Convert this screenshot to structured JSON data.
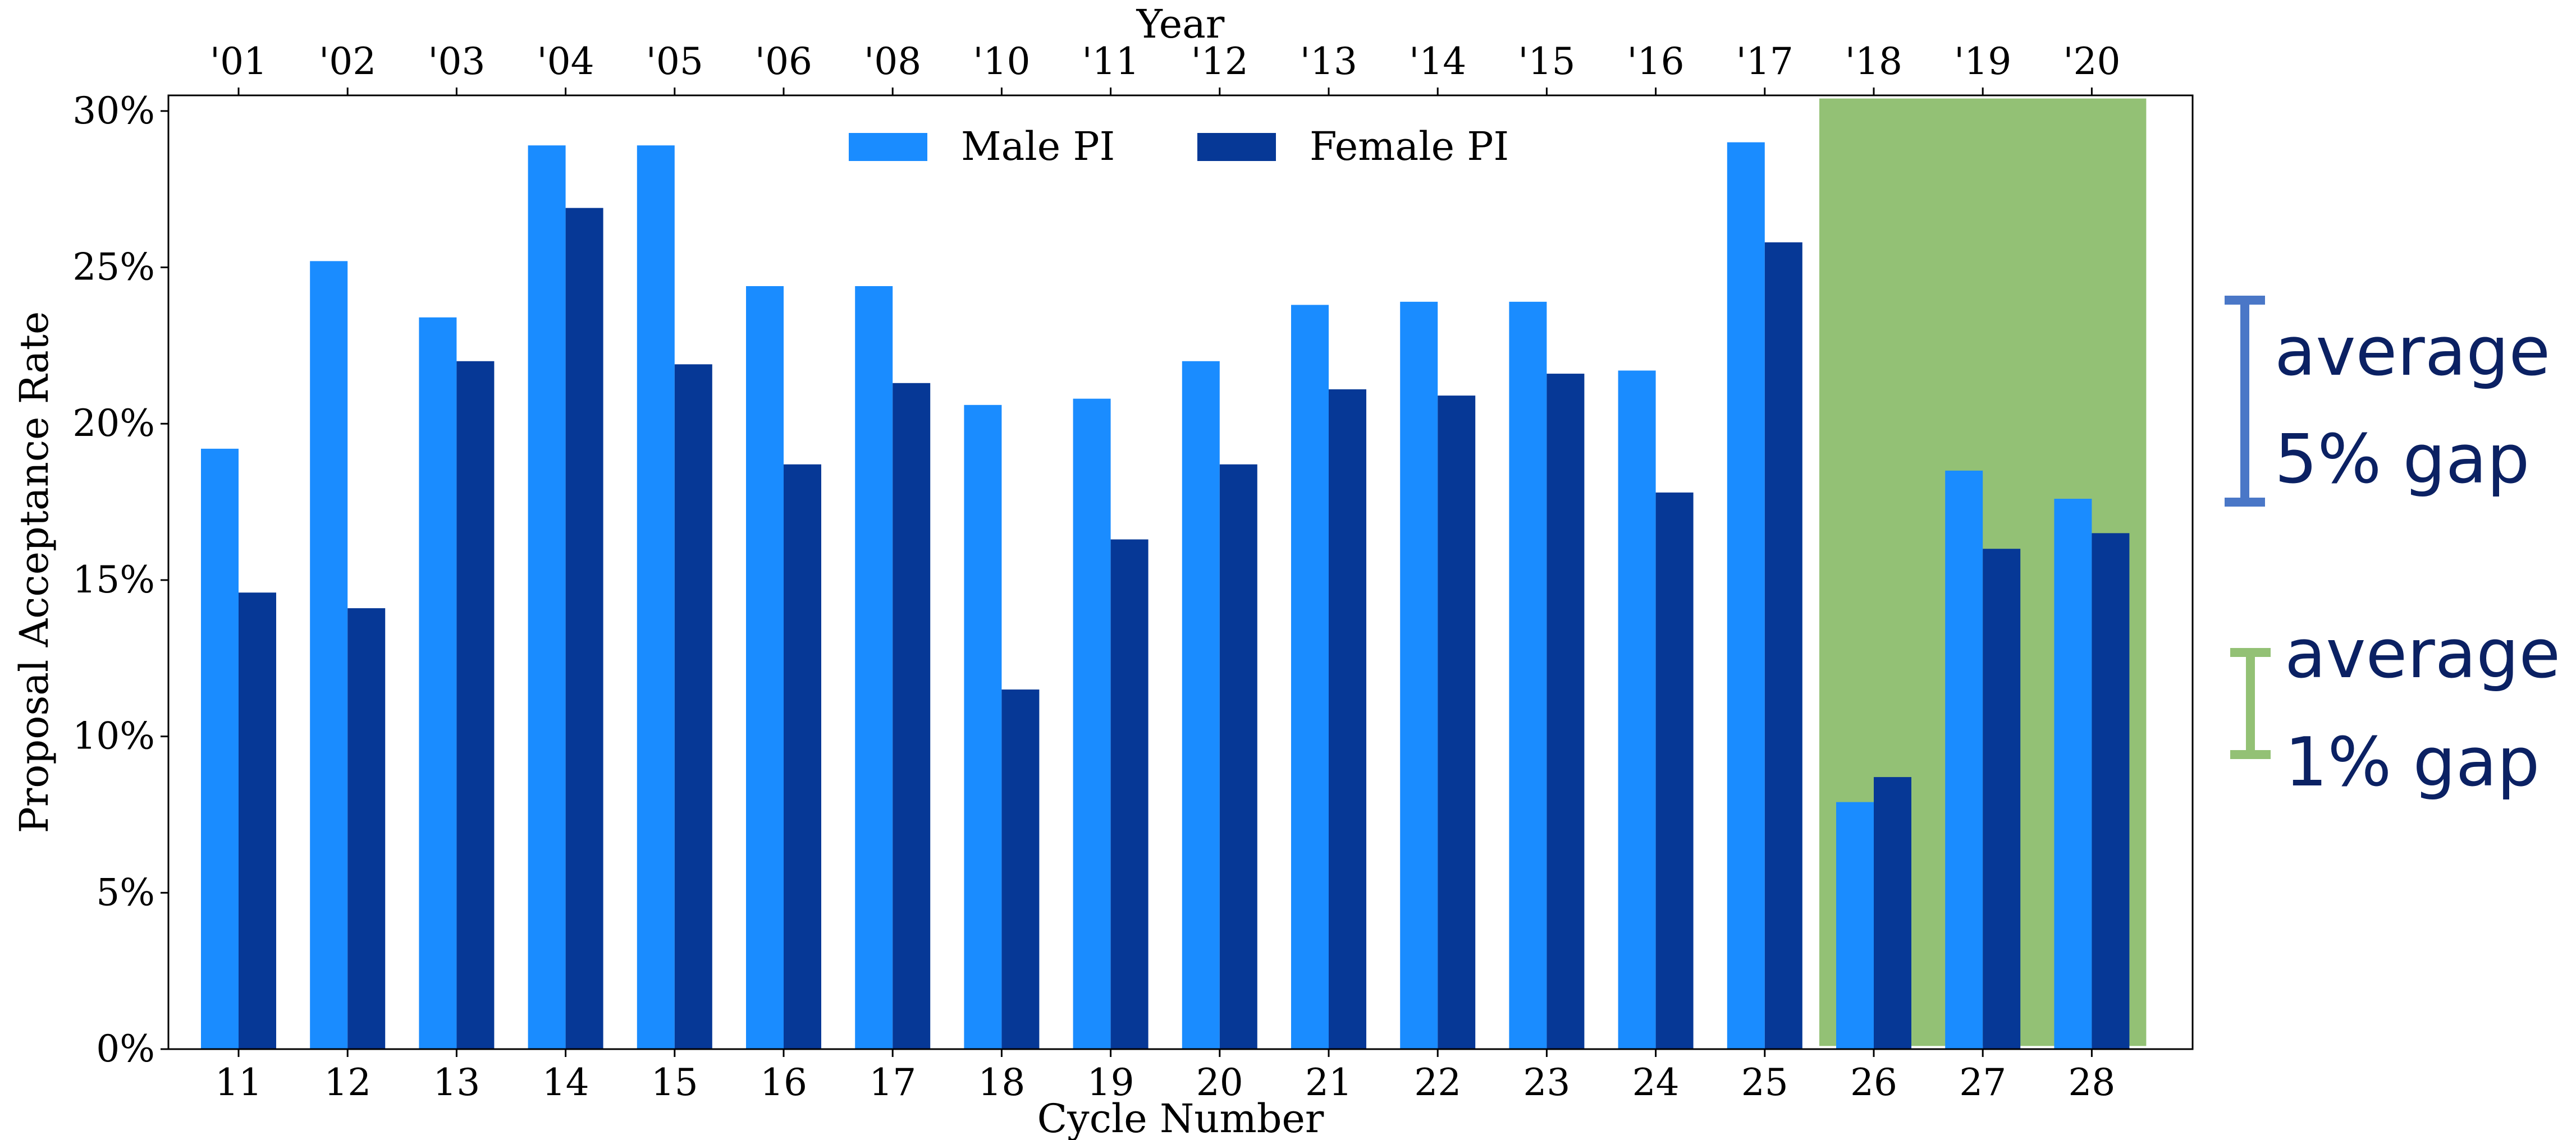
{
  "chart_data": {
    "type": "bar",
    "categories": [
      "11",
      "12",
      "13",
      "14",
      "15",
      "16",
      "17",
      "18",
      "19",
      "20",
      "21",
      "22",
      "23",
      "24",
      "25",
      "26",
      "27",
      "28"
    ],
    "top_categories": [
      "'01",
      "'02",
      "'03",
      "'04",
      "'05",
      "'06",
      "'08",
      "'10",
      "'11",
      "'12",
      "'13",
      "'14",
      "'15",
      "'16",
      "'17",
      "'18",
      "'19",
      "'20"
    ],
    "series": [
      {
        "name": "Male PI",
        "color": "#1a8cff",
        "values": [
          19.2,
          25.2,
          23.4,
          28.9,
          28.9,
          24.4,
          24.4,
          20.6,
          20.8,
          22.0,
          23.8,
          23.9,
          23.9,
          21.7,
          29.0,
          7.9,
          18.5,
          17.6
        ]
      },
      {
        "name": "Female PI",
        "color": "#063896",
        "values": [
          14.6,
          14.1,
          22.0,
          26.9,
          21.9,
          18.7,
          21.3,
          11.5,
          16.3,
          18.7,
          21.1,
          20.9,
          21.6,
          17.8,
          25.8,
          8.7,
          16.0,
          16.5
        ]
      }
    ],
    "xlabel": "Cycle Number",
    "x2label": "Year",
    "ylabel": "Proposal Acceptance Rate",
    "ylim": [
      0,
      30.5
    ],
    "yticks": [
      0,
      5,
      10,
      15,
      20,
      25,
      30
    ],
    "ytick_labels": [
      "0%",
      "5%",
      "10%",
      "15%",
      "20%",
      "25%",
      "30%"
    ],
    "legend_position": "top-center",
    "highlight": {
      "from_category": "26",
      "to_category": "28",
      "color": "#93c175"
    },
    "grid": false
  },
  "annotations": [
    {
      "line1": "average",
      "line2": "5% gap",
      "color": "#4a77c7"
    },
    {
      "line1": "average",
      "line2": "1% gap",
      "color": "#93c175"
    }
  ]
}
